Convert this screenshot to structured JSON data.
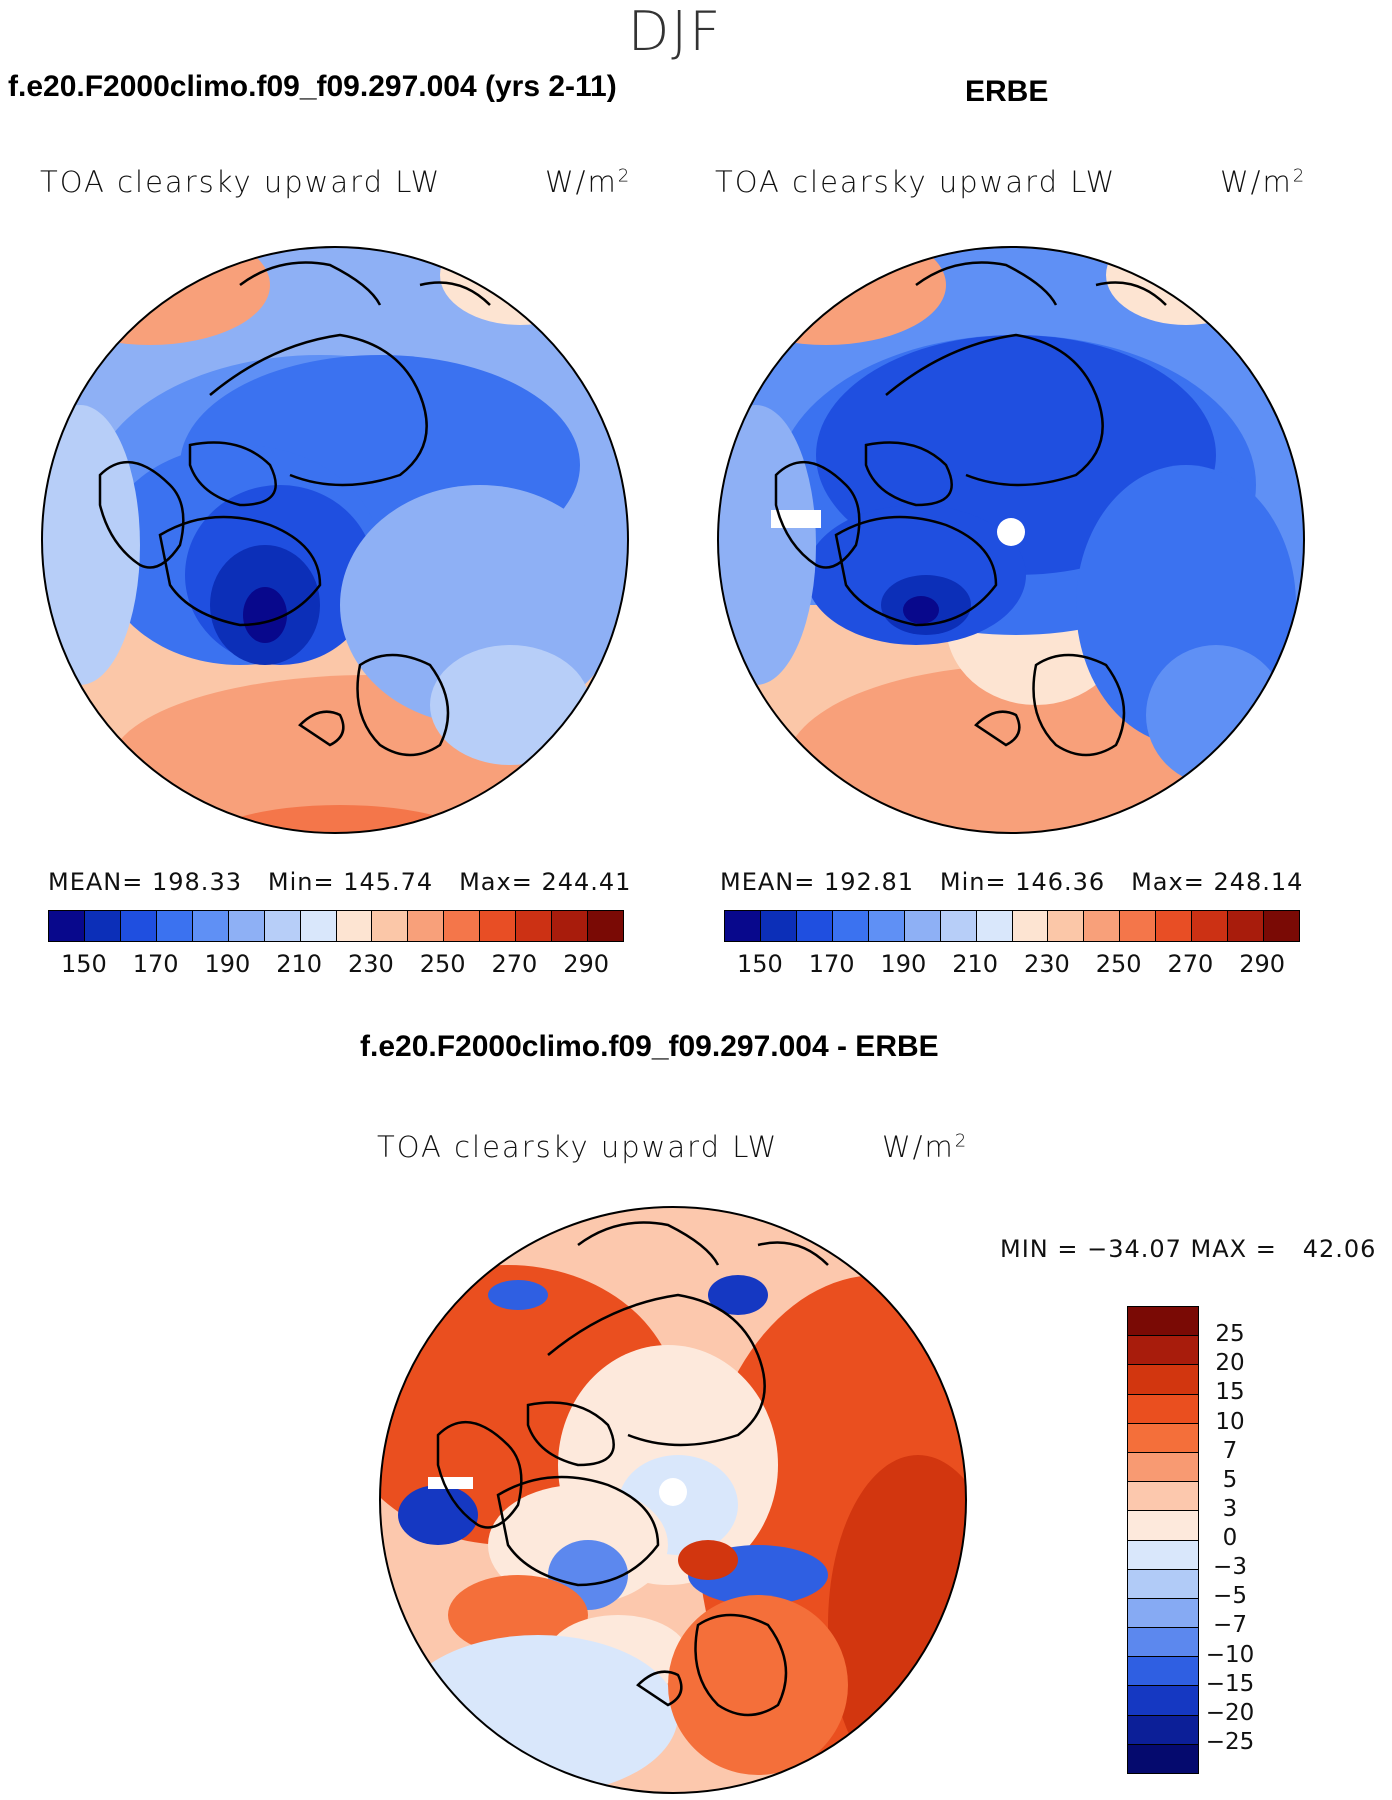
{
  "season": "DJF",
  "panels": {
    "model": {
      "case_title": "f.e20.F2000climo.f09_f09.297.004 (yrs 2-11)",
      "variable": "TOA clearsky upward LW",
      "units": "W/m",
      "units_exp": "2",
      "mean_label": "MEAN=",
      "mean": "198.33",
      "min_label": "Min=",
      "min": "145.74",
      "max_label": "Max=",
      "max": "244.41"
    },
    "obs": {
      "case_title": "ERBE",
      "variable": "TOA clearsky upward LW",
      "units": "W/m",
      "units_exp": "2",
      "mean_label": "MEAN=",
      "mean": "192.81",
      "min_label": "Min=",
      "min": "146.36",
      "max_label": "Max=",
      "max": "248.14"
    },
    "diff": {
      "case_title": "f.e20.F2000climo.f09_f09.297.004 - ERBE",
      "variable": "TOA clearsky upward LW",
      "units": "W/m",
      "units_exp": "2",
      "minmax": "MIN = −34.07 MAX =   42.06"
    }
  },
  "abs_colorbar": {
    "ticks": [
      "150",
      "170",
      "190",
      "210",
      "230",
      "250",
      "270",
      "290"
    ],
    "colors": [
      "#08088c",
      "#0c2fb8",
      "#1f4fe0",
      "#3b72f0",
      "#5f90f5",
      "#8eb0f5",
      "#b7cef8",
      "#d9e7fb",
      "#fde4d2",
      "#fbc7a8",
      "#f8a07a",
      "#f4764a",
      "#e84e25",
      "#cc3114",
      "#a81c0c",
      "#7a0a05"
    ]
  },
  "diff_colorbar": {
    "labels": [
      "25",
      "20",
      "15",
      "10",
      "7",
      "5",
      "3",
      "0",
      "−3",
      "−5",
      "−7",
      "−10",
      "−15",
      "−20",
      "−25"
    ],
    "colors": [
      "#7a0a05",
      "#a81c0c",
      "#d2360f",
      "#ea4f1f",
      "#f46f3a",
      "#f89a72",
      "#fcc8ad",
      "#fde9dc",
      "#d9e7fb",
      "#b1cbf7",
      "#86aaf3",
      "#5c88ee",
      "#2f5fe2",
      "#1538c2",
      "#0c1f98",
      "#050a6e"
    ]
  }
}
